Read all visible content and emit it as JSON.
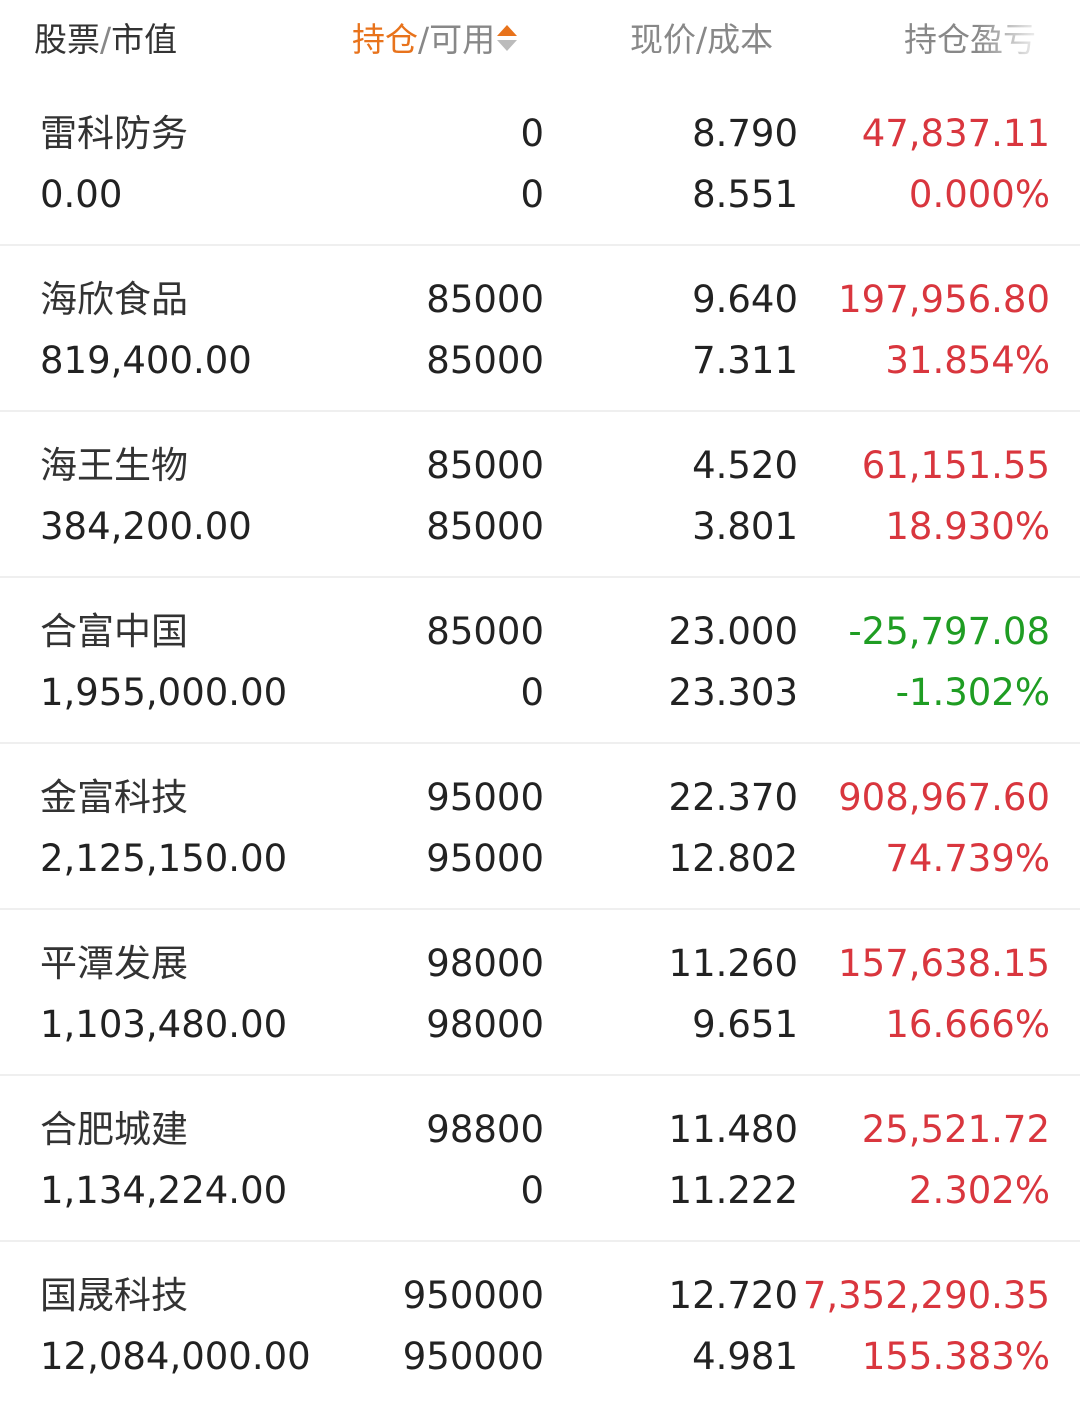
{
  "header": {
    "stock_label": "股票",
    "mv_label": "市值",
    "hold_label": "持仓",
    "avail_label": "可用",
    "price_label": "现价",
    "cost_label": "成本",
    "pnl_label": "持仓盈亏",
    "sep": "/"
  },
  "colors": {
    "accent": "#e8731c",
    "gain": "#d9363e",
    "loss": "#1f9d23"
  },
  "rows": [
    {
      "name": "雷科防务",
      "market_value": "0.00",
      "holding": "0",
      "available": "0",
      "price": "8.790",
      "cost": "8.551",
      "pnl": "47,837.11",
      "pnl_pct": "0.000%",
      "trend": "up"
    },
    {
      "name": "海欣食品",
      "market_value": "819,400.00",
      "holding": "85000",
      "available": "85000",
      "price": "9.640",
      "cost": "7.311",
      "pnl": "197,956.80",
      "pnl_pct": "31.854%",
      "trend": "up"
    },
    {
      "name": "海王生物",
      "market_value": "384,200.00",
      "holding": "85000",
      "available": "85000",
      "price": "4.520",
      "cost": "3.801",
      "pnl": "61,151.55",
      "pnl_pct": "18.930%",
      "trend": "up"
    },
    {
      "name": "合富中国",
      "market_value": "1,955,000.00",
      "holding": "85000",
      "available": "0",
      "price": "23.000",
      "cost": "23.303",
      "pnl": "-25,797.08",
      "pnl_pct": "-1.302%",
      "trend": "down"
    },
    {
      "name": "金富科技",
      "market_value": "2,125,150.00",
      "holding": "95000",
      "available": "95000",
      "price": "22.370",
      "cost": "12.802",
      "pnl": "908,967.60",
      "pnl_pct": "74.739%",
      "trend": "up"
    },
    {
      "name": "平潭发展",
      "market_value": "1,103,480.00",
      "holding": "98000",
      "available": "98000",
      "price": "11.260",
      "cost": "9.651",
      "pnl": "157,638.15",
      "pnl_pct": "16.666%",
      "trend": "up"
    },
    {
      "name": "合肥城建",
      "market_value": "1,134,224.00",
      "holding": "98800",
      "available": "0",
      "price": "11.480",
      "cost": "11.222",
      "pnl": "25,521.72",
      "pnl_pct": "2.302%",
      "trend": "up"
    },
    {
      "name": "国晟科技",
      "market_value": "12,084,000.00",
      "holding": "950000",
      "available": "950000",
      "price": "12.720",
      "cost": "4.981",
      "pnl": "7,352,290.35",
      "pnl_pct": "155.383%",
      "trend": "up"
    }
  ]
}
